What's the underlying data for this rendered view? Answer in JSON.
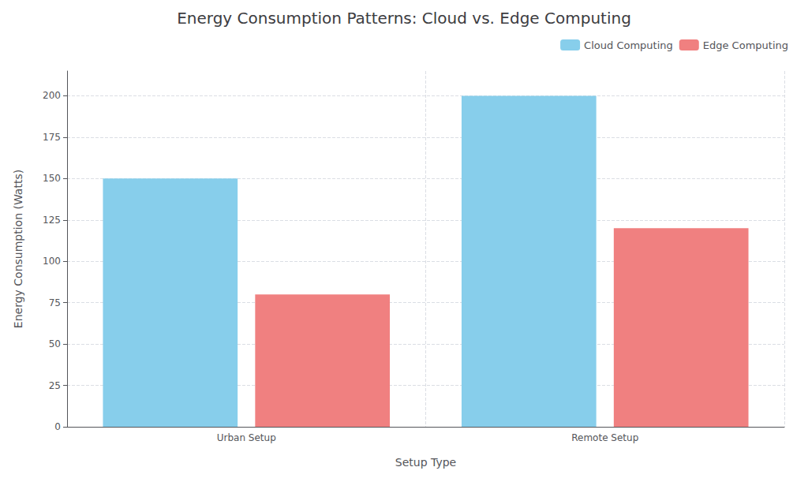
{
  "chart_data": {
    "type": "bar",
    "title": "Energy Consumption Patterns: Cloud vs. Edge Computing",
    "xlabel": "Setup Type",
    "ylabel": "Energy Consumption (Watts)",
    "categories": [
      "Urban Setup",
      "Remote Setup"
    ],
    "series": [
      {
        "name": "Cloud Computing",
        "color": "#87CEEB",
        "values": [
          150,
          200
        ]
      },
      {
        "name": "Edge Computing",
        "color": "#F08080",
        "values": [
          80,
          120
        ]
      }
    ],
    "ylim": [
      0,
      215
    ],
    "yticks": [
      0,
      25,
      50,
      75,
      100,
      125,
      150,
      175,
      200
    ],
    "grid": true,
    "legend": "upper right"
  }
}
